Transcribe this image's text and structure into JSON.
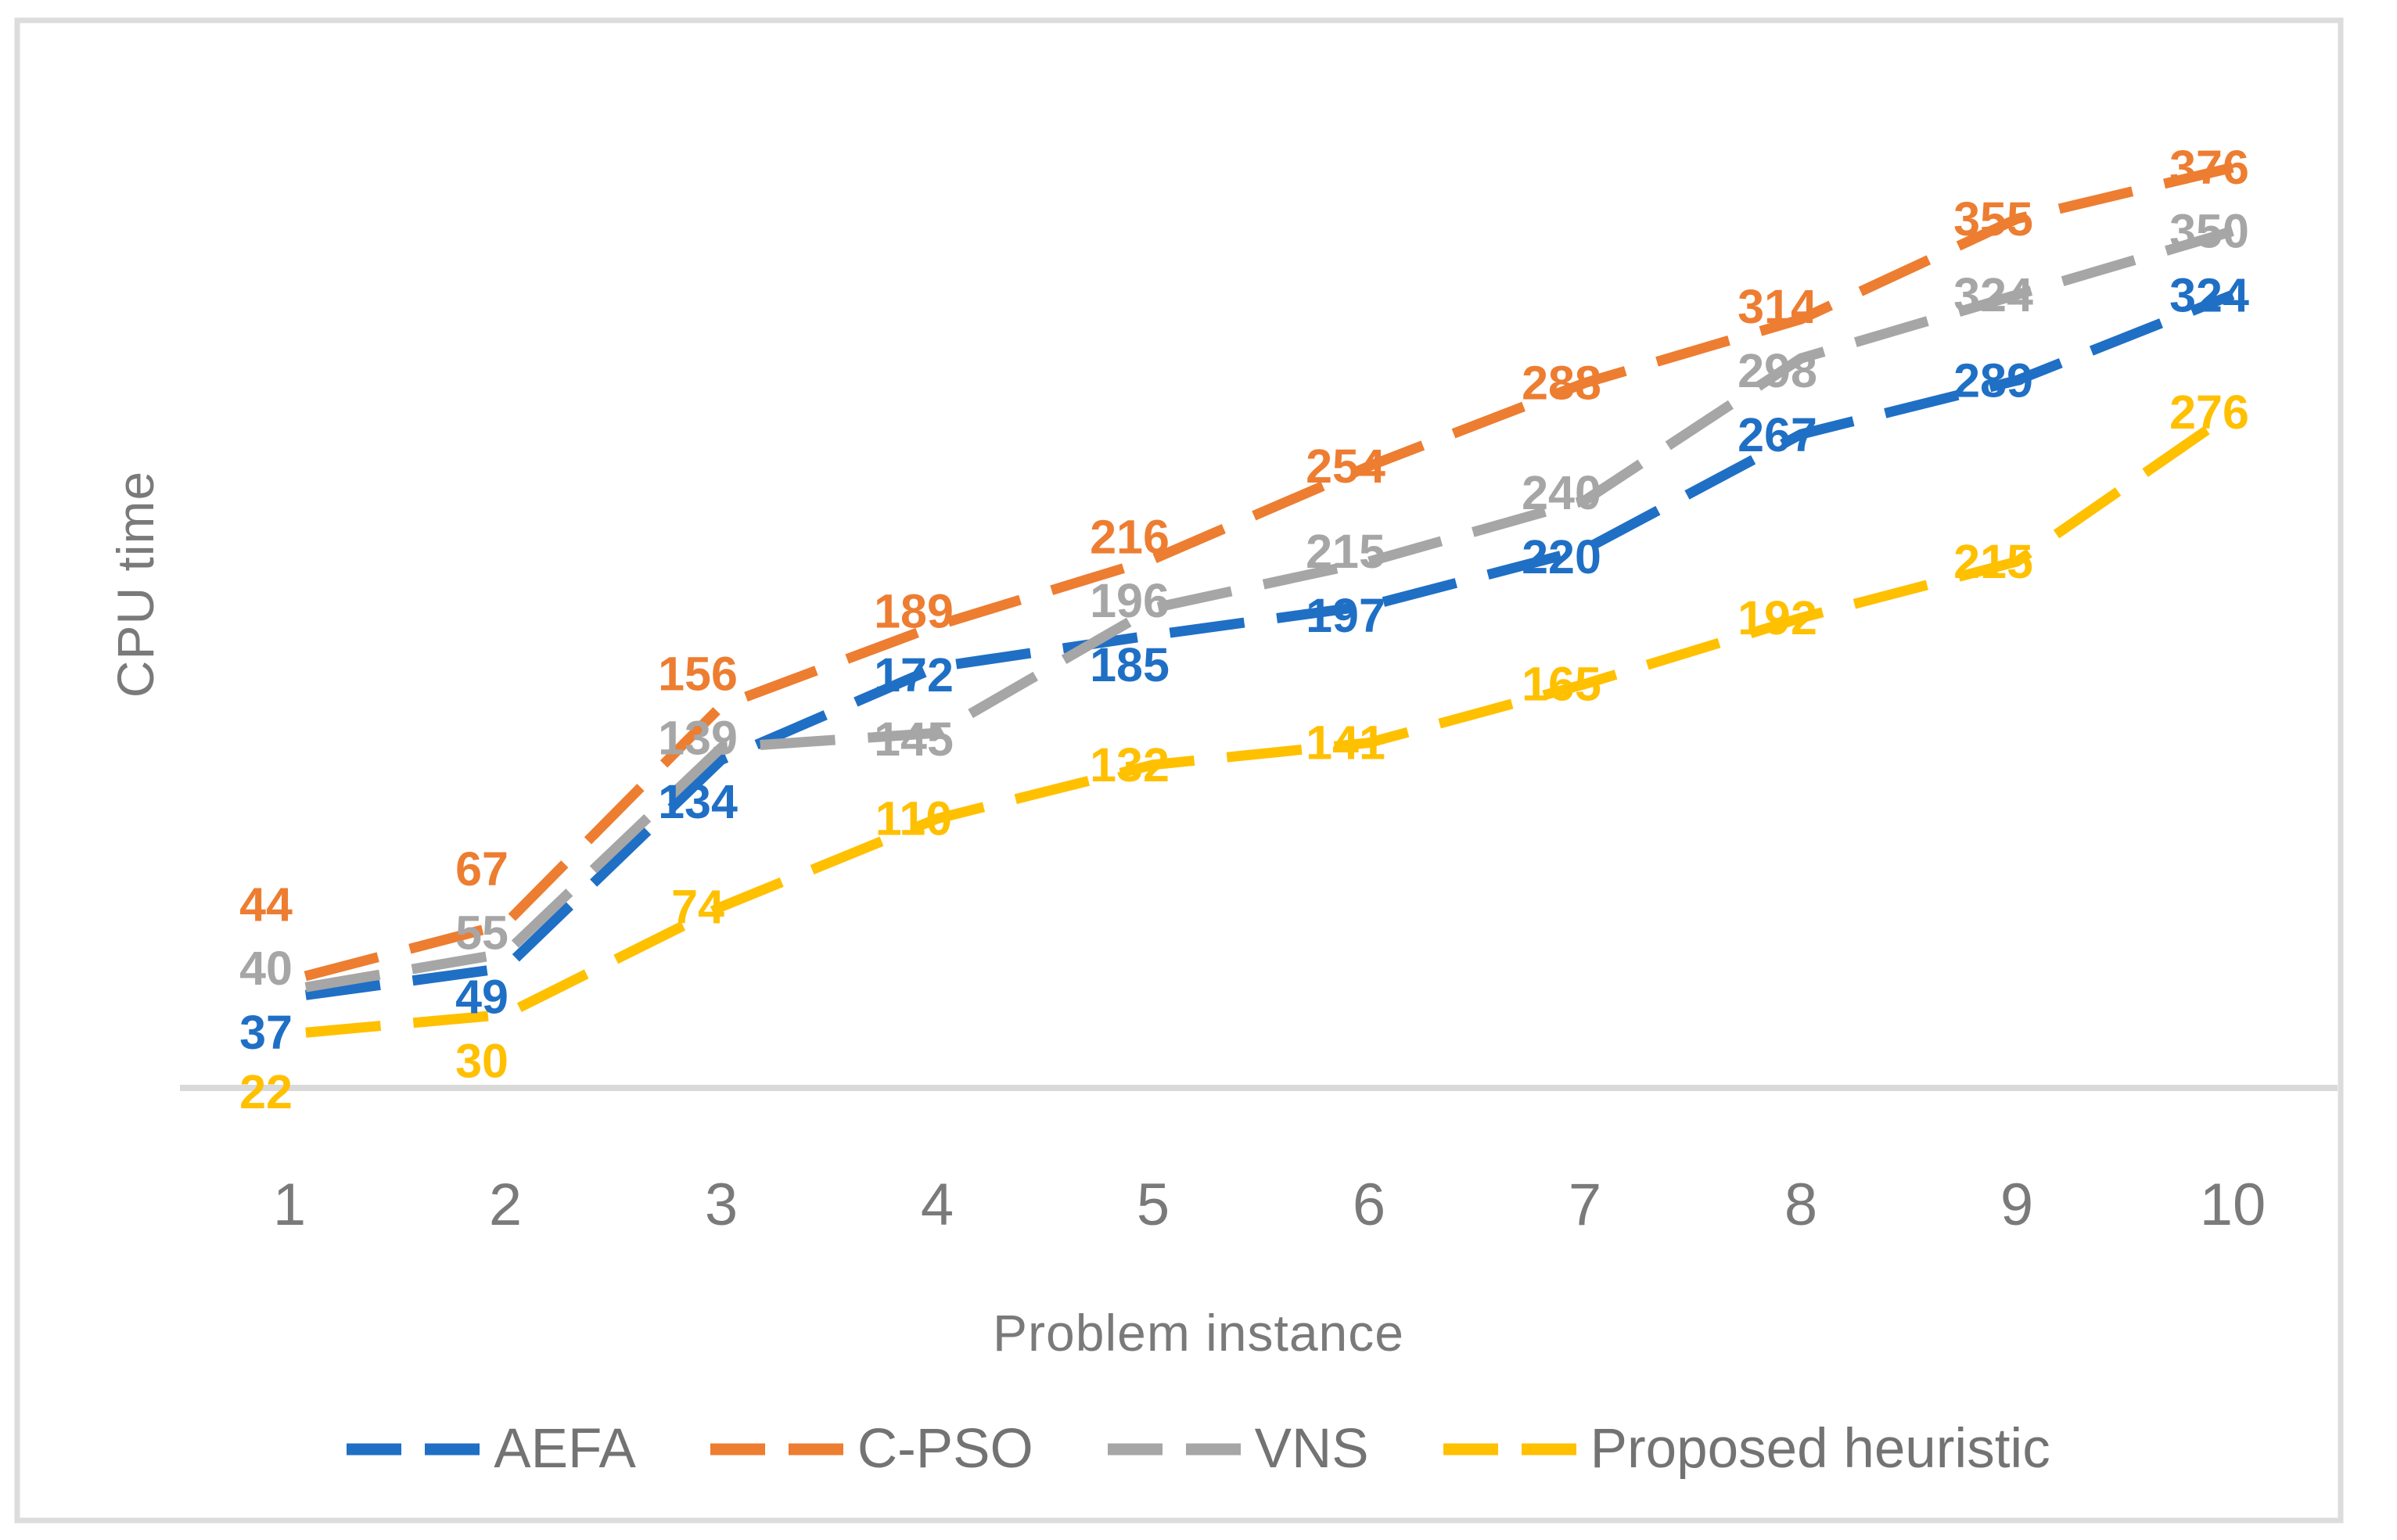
{
  "chart_data": {
    "type": "line",
    "title": "",
    "xlabel": "Problem instance",
    "ylabel": "CPU time",
    "categories": [
      "1",
      "2",
      "3",
      "4",
      "5",
      "6",
      "7",
      "8",
      "9",
      "10"
    ],
    "xlim": [
      0.5,
      10.5
    ],
    "ylim": [
      0,
      430
    ],
    "grid": false,
    "line_style": "dashed",
    "show_data_labels": true,
    "legend_position": "bottom",
    "series": [
      {
        "name": "AEFA",
        "color": "#1f6fc5",
        "values": [
          37,
          49,
          134,
          172,
          185,
          197,
          220,
          267,
          289,
          324
        ]
      },
      {
        "name": "C-PSO",
        "color": "#ed7d31",
        "values": [
          44,
          67,
          156,
          189,
          216,
          254,
          288,
          314,
          355,
          376
        ]
      },
      {
        "name": "VNS",
        "color": "#a6a6a6",
        "values": [
          40,
          55,
          139,
          145,
          196,
          215,
          240,
          298,
          324,
          350
        ]
      },
      {
        "name": "Proposed heuristic",
        "color": "#ffc000",
        "values": [
          22,
          30,
          74,
          110,
          132,
          141,
          165,
          192,
          215,
          276
        ]
      }
    ],
    "colors": {
      "frame": "#dcdcdc",
      "axis": "#d9d9d9",
      "tick_text": "#7a7a7a",
      "axis_title_text": "#7a7a7a",
      "legend_text": "#737373"
    }
  }
}
